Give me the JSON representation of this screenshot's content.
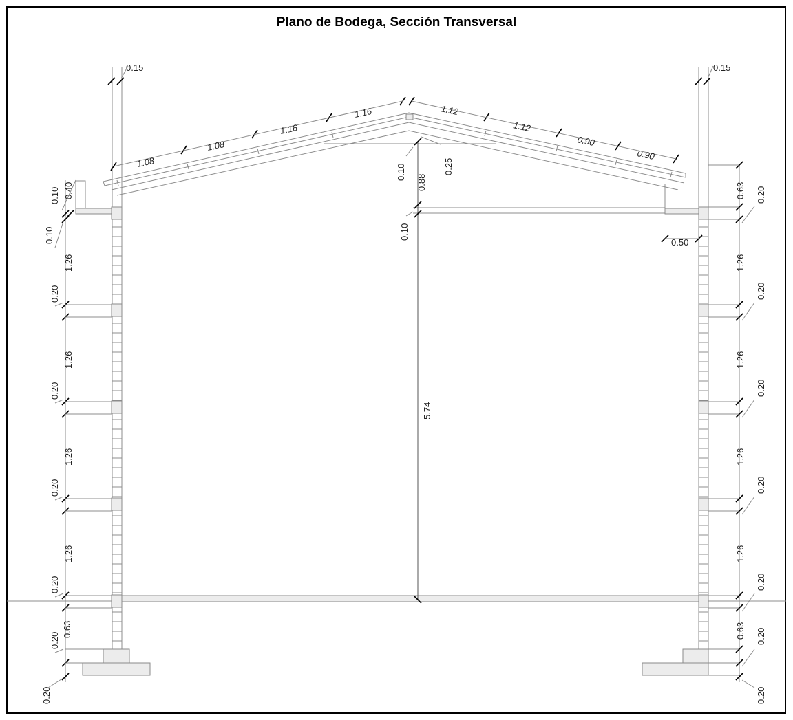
{
  "title": "Plano de Bodega, Sección Transversal",
  "dimensions": {
    "top_left_post": "0.15",
    "top_right_post": "0.15",
    "roof_left": [
      "1.08",
      "1.08",
      "1.16",
      "1.16"
    ],
    "roof_right": [
      "1.12",
      "1.12",
      "0.90",
      "0.90"
    ],
    "ridge_a": "0.10",
    "ridge_b": "0.88",
    "ridge_c": "0.25",
    "ridge_d": "0.10",
    "center_height": "5.74",
    "left_eave_a": "0.10",
    "left_eave_b": "0.40",
    "left_eave_c": "0.10",
    "right_eave_a": "0.63",
    "right_eave_b": "0.20",
    "right_overhang": "0.50",
    "left_1_26": [
      "1.26",
      "1.26",
      "1.26",
      "1.26"
    ],
    "left_0_20": [
      "0.20",
      "0.20",
      "0.20",
      "0.20",
      "0.20"
    ],
    "left_base_a": "0.63",
    "left_base_b": "0.20",
    "right_1_26": [
      "1.26",
      "1.26",
      "1.26",
      "1.26"
    ],
    "right_0_20": [
      "0.20",
      "0.20",
      "0.20",
      "0.20"
    ],
    "right_base_a": "0.63",
    "right_base_b": "0.20",
    "right_base_c": "0.20"
  }
}
